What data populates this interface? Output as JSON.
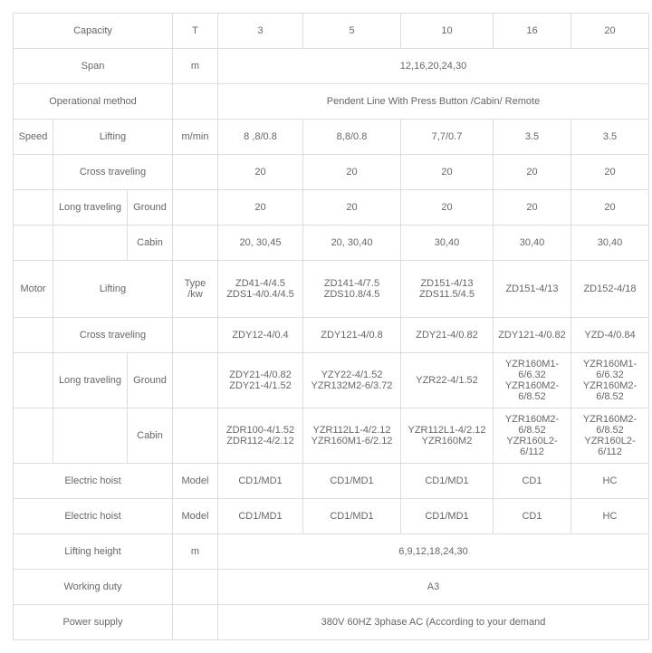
{
  "header": {
    "capacity_label": "Capacity",
    "capacity_unit": "T",
    "c3": "3",
    "c5": "5",
    "c10": "10",
    "c16": "16",
    "c20": "20",
    "span_label": "Span",
    "span_unit": "m",
    "span_val": "12,16,20,24,30",
    "op_label": "Operational method",
    "op_val": "Pendent Line With Press Button /Cabin/ Remote"
  },
  "speed": {
    "group": "Speed",
    "lifting": "Lifting",
    "lifting_unit": "m/min",
    "lifting_v": [
      "8 ,8/0.8",
      "8,8/0.8",
      "7,7/0.7",
      "3.5",
      "3.5"
    ],
    "cross": "Cross traveling",
    "cross_v": [
      "20",
      "20",
      "20",
      "20",
      "20"
    ],
    "long": "Long traveling",
    "ground": "Ground",
    "ground_v": [
      "20",
      "20",
      "20",
      "20",
      "20"
    ],
    "cabin": "Cabin",
    "cabin_v": [
      "20, 30,45",
      "20, 30,40",
      "30,40",
      "30,40",
      "30,40"
    ]
  },
  "motor": {
    "group": "Motor",
    "lifting": "Lifting",
    "unit": "Type /kw",
    "lifting_v": [
      "ZD41-4/4.5 ZDS1-4/0.4/4.5",
      "ZD141-4/7.5 ZDS10.8/4.5",
      "ZD151-4/13 ZDS11.5/4.5",
      "ZD151-4/13",
      "ZD152-4/18"
    ],
    "cross": "Cross traveling",
    "cross_v": [
      "ZDY12-4/0.4",
      "ZDY121-4/0.8",
      "ZDY21-4/0.82",
      "ZDY121-4/0.82",
      "YZD-4/0.84"
    ],
    "long": "Long traveling",
    "ground": "Ground",
    "lg_v": [
      "ZDY21-4/0.82 ZDY21-4/1.52",
      "YZY22-4/1.52 YZR132M2-6/3.72",
      "YZR22-4/1.52",
      "YZR160M1-6/6.32 YZR160M2-6/8.52",
      "YZR160M1-6/6.32 YZR160M2-6/8.52"
    ],
    "cabin": "Cabin",
    "cb_v": [
      "ZDR100-4/1.52 ZDR112-4/2.12",
      "YZR112L1-4/2.12 YZR160M1-6/2.12",
      "YZR112L1-4/2.12 YZR160M2",
      "YZR160M2-6/8.52 YZR160L2-6/112",
      "YZR160M2-6/8.52 YZR160L2-6/112"
    ]
  },
  "hoist": {
    "label": "Electric hoist",
    "unit": "Model",
    "v1": [
      "CD1/MD1",
      "CD1/MD1",
      "CD1/MD1",
      "CD1",
      "HC"
    ],
    "v2": [
      "CD1/MD1",
      "CD1/MD1",
      "CD1/MD1",
      "CD1",
      "HC"
    ]
  },
  "height": {
    "label": "Lifting height",
    "unit": "m",
    "val": "6,9,12,18,24,30"
  },
  "duty": {
    "label": "Working duty",
    "val": "A3"
  },
  "power": {
    "label": "Power supply",
    "val": "380V 60HZ 3phase AC (According to your demand"
  }
}
